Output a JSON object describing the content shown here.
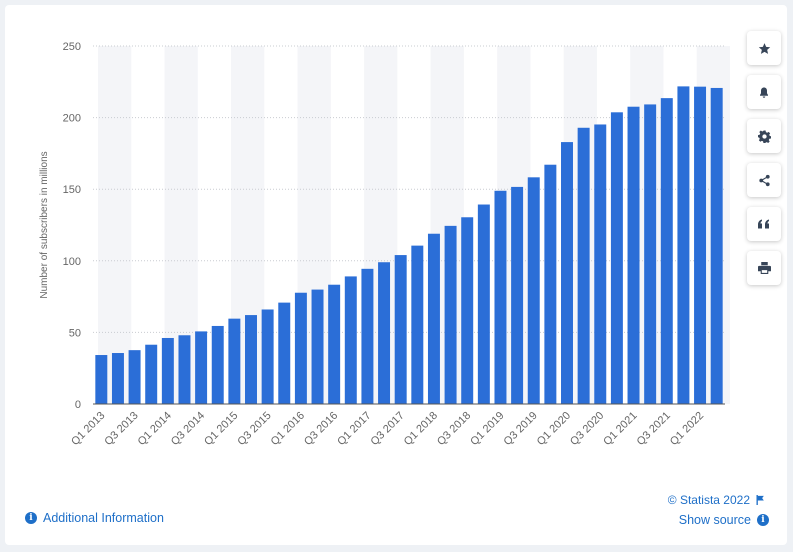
{
  "chart_data": {
    "type": "bar",
    "ylabel": "Number of subscribers in millions",
    "xlabel": "",
    "ylim": [
      0,
      250
    ],
    "yticks": [
      0,
      50,
      100,
      150,
      200,
      250
    ],
    "grid": true,
    "categories": [
      "Q1 2013",
      "Q2 2013",
      "Q3 2013",
      "Q4 2013",
      "Q1 2014",
      "Q2 2014",
      "Q3 2014",
      "Q4 2014",
      "Q1 2015",
      "Q2 2015",
      "Q3 2015",
      "Q4 2015",
      "Q1 2016",
      "Q2 2016",
      "Q3 2016",
      "Q4 2016",
      "Q1 2017",
      "Q2 2017",
      "Q3 2017",
      "Q4 2017",
      "Q1 2018",
      "Q2 2018",
      "Q3 2018",
      "Q4 2018",
      "Q1 2019",
      "Q2 2019",
      "Q3 2019",
      "Q4 2019",
      "Q1 2020",
      "Q2 2020",
      "Q3 2020",
      "Q4 2020",
      "Q1 2021",
      "Q2 2021",
      "Q3 2021",
      "Q4 2021",
      "Q1 2022",
      "Q2 2022"
    ],
    "xtick_labels": [
      "Q1 2013",
      "Q3 2013",
      "Q1 2014",
      "Q3 2014",
      "Q1 2015",
      "Q3 2015",
      "Q1 2016",
      "Q3 2016",
      "Q1 2017",
      "Q3 2017",
      "Q1 2018",
      "Q3 2018",
      "Q1 2019",
      "Q3 2019",
      "Q1 2020",
      "Q3 2020",
      "Q1 2021",
      "Q3 2021",
      "Q1 2022"
    ],
    "values": [
      34.2,
      35.6,
      37.6,
      41.4,
      46.1,
      48.0,
      50.7,
      54.5,
      59.6,
      62.1,
      66.0,
      70.8,
      77.7,
      79.9,
      83.3,
      89.1,
      94.4,
      99.0,
      104.0,
      110.6,
      118.9,
      124.4,
      130.4,
      139.3,
      148.9,
      151.6,
      158.3,
      167.1,
      182.9,
      192.9,
      195.2,
      203.7,
      207.6,
      209.2,
      213.6,
      221.8,
      221.6,
      220.7
    ],
    "bar_color": "#2b6ed7"
  },
  "toolbar": {
    "icons": [
      "star-icon",
      "bell-icon",
      "gear-icon",
      "share-icon",
      "quote-icon",
      "print-icon"
    ]
  },
  "footer": {
    "copyright": "© Statista 2022",
    "additional_info": "Additional Information",
    "show_source": "Show source"
  }
}
